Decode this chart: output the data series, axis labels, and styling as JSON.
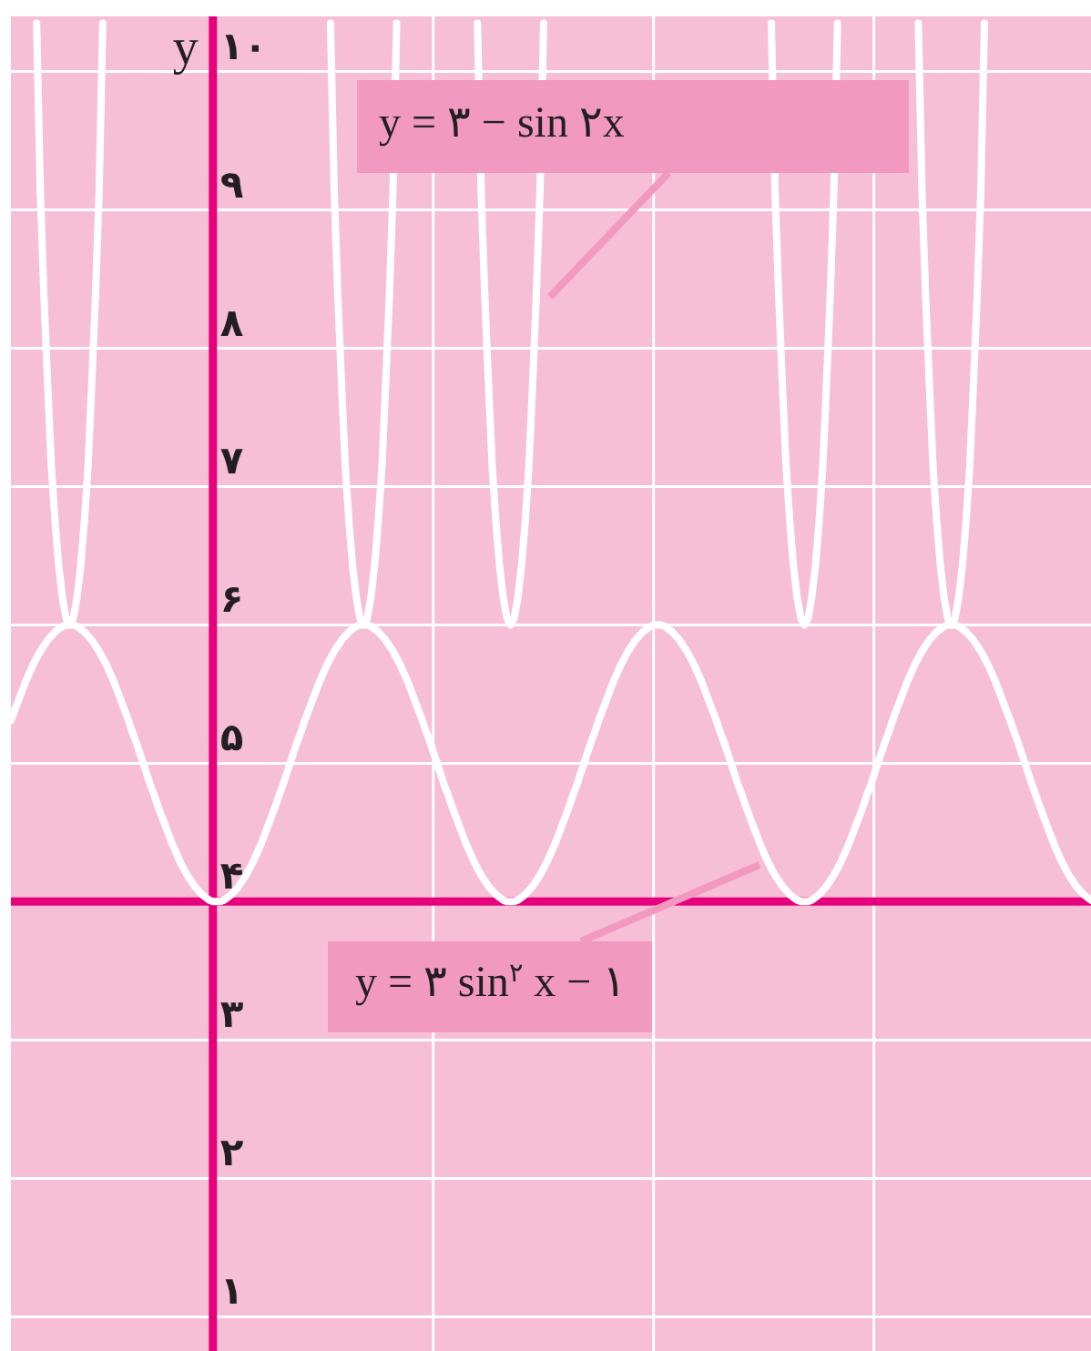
{
  "chart_data": {
    "type": "line",
    "ylabel": "y",
    "categories": [
      null,
      null,
      null,
      null,
      null,
      null,
      null,
      null,
      null,
      null,
      null,
      null,
      null,
      null,
      null,
      null,
      null,
      null,
      null,
      null,
      null,
      null,
      null,
      null,
      null,
      null,
      null,
      null,
      null,
      null,
      null,
      null,
      null,
      null,
      null,
      null,
      null,
      null,
      null,
      null,
      null,
      null,
      null,
      null,
      null,
      null,
      null,
      null,
      null,
      null,
      null,
      null,
      null,
      null,
      null,
      null,
      null,
      null,
      null,
      null,
      null,
      null,
      null,
      null,
      null,
      null,
      null,
      null,
      null,
      null,
      null,
      null,
      null,
      null,
      null,
      null,
      null,
      null,
      null,
      null,
      null,
      null,
      null,
      null,
      null,
      null,
      null,
      null,
      null,
      null,
      null,
      null,
      null,
      null,
      null,
      null,
      null,
      null,
      null,
      null,
      null,
      null,
      null,
      null,
      null,
      null,
      null,
      null,
      null,
      null,
      null,
      null,
      null,
      null,
      null,
      null,
      null,
      null,
      null,
      null,
      null,
      null,
      null,
      null,
      null,
      null,
      null,
      null,
      null,
      null,
      null,
      null,
      null,
      null,
      null,
      null,
      null,
      null,
      null,
      null,
      null,
      null,
      null,
      null,
      null,
      null,
      null,
      null,
      null,
      null,
      null,
      null,
      null,
      null,
      null,
      null,
      null,
      null,
      null,
      null,
      null,
      null,
      null,
      null,
      null,
      null,
      null,
      null,
      null,
      null,
      null,
      null,
      null,
      null,
      null,
      null,
      null,
      null,
      null,
      null,
      null,
      null,
      null,
      null,
      null,
      null,
      null,
      null,
      null,
      null,
      null,
      null,
      null,
      null,
      null,
      null,
      null,
      null,
      null,
      null,
      null,
      null,
      null,
      null,
      null,
      null,
      null,
      null,
      null,
      null,
      null,
      null,
      null,
      null,
      null,
      null,
      null,
      null,
      null,
      null,
      null,
      null,
      null,
      null,
      null,
      null,
      null,
      null,
      null,
      null,
      null,
      null,
      null,
      null,
      null,
      null,
      null,
      null,
      null,
      null,
      null,
      null,
      null,
      null,
      null,
      null,
      null,
      null,
      null,
      null,
      null,
      null,
      null,
      null,
      null,
      null,
      null,
      null,
      null,
      null,
      null,
      null,
      null,
      null,
      null,
      null,
      null,
      null,
      null,
      null,
      null,
      null,
      null,
      null,
      null,
      null,
      null,
      null,
      null,
      null,
      null,
      null,
      null,
      null,
      null,
      null,
      null,
      null,
      null,
      null,
      null,
      null,
      null,
      null,
      null
    ],
    "series": [
      {
        "name": "y = ۳ − sin ۲x",
        "color": "#ffffff",
        "values": [
          null,
          null,
          null,
          null,
          null,
          null,
          null,
          10.35,
          9.13,
          8.37,
          7.74,
          7.15,
          6.75,
          6.43,
          6.2,
          6.05,
          6,
          6.05,
          6.2,
          6.43,
          6.75,
          7.15,
          7.74,
          8.37,
          9.13,
          10.35,
          null,
          null,
          null,
          null,
          null,
          null,
          null,
          null,
          null,
          null,
          null,
          null,
          null,
          null,
          null,
          null,
          null,
          null,
          null,
          null,
          null,
          null,
          null,
          null,
          null,
          null,
          null,
          null,
          null,
          null,
          null,
          null,
          null,
          null,
          null,
          null,
          null,
          null,
          null,
          null,
          null,
          null,
          null,
          null,
          null,
          null,
          null,
          null,
          null,
          null,
          null,
          null,
          null,
          null,
          null,
          null,
          null,
          null,
          null,
          null,
          null,
          10.35,
          9.13,
          8.37,
          7.74,
          7.15,
          6.75,
          6.43,
          6.2,
          6.05,
          6,
          6.05,
          6.2,
          6.43,
          6.75,
          7.15,
          7.74,
          8.37,
          9.13,
          10.35,
          null,
          null,
          null,
          null,
          null,
          null,
          null,
          null,
          null,
          null,
          null,
          null,
          null,
          null,
          null,
          null,
          null,
          null,
          null,
          null,
          null,
          10.35,
          9.13,
          8.37,
          7.74,
          7.15,
          6.75,
          6.43,
          6.2,
          6.05,
          6,
          6.05,
          6.2,
          6.43,
          6.75,
          7.15,
          7.74,
          8.37,
          9.13,
          10.35,
          null,
          null,
          null,
          null,
          null,
          null,
          null,
          null,
          null,
          null,
          null,
          null,
          null,
          null,
          null,
          null,
          null,
          null,
          null,
          null,
          null,
          null,
          null,
          null,
          null,
          null,
          null,
          null,
          null,
          null,
          null,
          null,
          null,
          null,
          null,
          null,
          null,
          null,
          null,
          null,
          null,
          null,
          null,
          null,
          null,
          null,
          null,
          null,
          null,
          null,
          null,
          null,
          null,
          null,
          null,
          null,
          null,
          null,
          null,
          null,
          null,
          10.35,
          9.13,
          8.37,
          7.74,
          7.15,
          6.75,
          6.43,
          6.2,
          6.05,
          6,
          6.05,
          6.2,
          6.43,
          6.75,
          7.15,
          7.74,
          8.37,
          9.13,
          10.35,
          null,
          null,
          null,
          null,
          null,
          null,
          null,
          null,
          null,
          null,
          null,
          null,
          null,
          null,
          null,
          null,
          null,
          null,
          null,
          null,
          null,
          10.35,
          9.13,
          8.37,
          7.74,
          7.15,
          6.75,
          6.43,
          6.2,
          6.05,
          6,
          6.05,
          6.2,
          6.43,
          6.75,
          7.15,
          7.74,
          8.37,
          9.13,
          10.35,
          null,
          null,
          null,
          null,
          null,
          null,
          null,
          null,
          null,
          null,
          null,
          null,
          null,
          null,
          null,
          null,
          null,
          null,
          null,
          null,
          null,
          null,
          null,
          null,
          null,
          null,
          null,
          null,
          null
        ]
      },
      {
        "name": "y = ۳ sin$^{۲}$ x − ۱",
        "color": "#ffffff",
        "values": [
          5.31,
          5.38,
          5.45,
          5.52,
          5.59,
          5.65,
          5.71,
          5.76,
          5.81,
          5.85,
          5.89,
          5.92,
          5.95,
          5.97,
          5.99,
          6,
          6,
          6,
          5.99,
          5.97,
          5.95,
          5.92,
          5.89,
          5.85,
          5.81,
          5.76,
          5.71,
          5.65,
          5.59,
          5.52,
          5.45,
          5.38,
          5.31,
          5.23,
          5.16,
          5.08,
          5,
          4.92,
          4.84,
          4.77,
          4.69,
          4.62,
          4.55,
          4.48,
          4.41,
          4.35,
          4.29,
          4.24,
          4.19,
          4.15,
          4.11,
          4.08,
          4.05,
          4.03,
          4.01,
          4,
          4,
          4,
          4.01,
          4.03,
          4.05,
          4.08,
          4.11,
          4.15,
          4.19,
          4.24,
          4.29,
          4.35,
          4.41,
          4.48,
          4.55,
          4.62,
          4.69,
          4.77,
          4.84,
          4.92,
          5,
          5.08,
          5.16,
          5.23,
          5.31,
          5.38,
          5.45,
          5.52,
          5.59,
          5.65,
          5.71,
          5.76,
          5.81,
          5.85,
          5.89,
          5.92,
          5.95,
          5.97,
          5.99,
          6,
          6,
          6,
          5.99,
          5.97,
          5.95,
          5.92,
          5.89,
          5.85,
          5.81,
          5.76,
          5.71,
          5.65,
          5.59,
          5.52,
          5.45,
          5.38,
          5.31,
          5.23,
          5.16,
          5.08,
          5,
          4.92,
          4.84,
          4.77,
          4.69,
          4.62,
          4.55,
          4.48,
          4.41,
          4.35,
          4.29,
          4.24,
          4.19,
          4.15,
          4.11,
          4.08,
          4.05,
          4.03,
          4.01,
          4,
          4,
          4,
          4.01,
          4.03,
          4.05,
          4.08,
          4.11,
          4.15,
          4.19,
          4.24,
          4.29,
          4.35,
          4.41,
          4.48,
          4.55,
          4.62,
          4.69,
          4.77,
          4.84,
          4.92,
          5,
          5.08,
          5.16,
          5.23,
          5.31,
          5.38,
          5.45,
          5.52,
          5.59,
          5.65,
          5.71,
          5.76,
          5.81,
          5.85,
          5.89,
          5.92,
          5.95,
          5.97,
          5.99,
          6,
          6,
          6,
          5.99,
          5.97,
          5.95,
          5.92,
          5.89,
          5.85,
          5.81,
          5.76,
          5.71,
          5.65,
          5.59,
          5.52,
          5.45,
          5.38,
          5.31,
          5.23,
          5.16,
          5.08,
          5,
          4.92,
          4.84,
          4.77,
          4.69,
          4.62,
          4.55,
          4.48,
          4.41,
          4.35,
          4.29,
          4.24,
          4.19,
          4.15,
          4.11,
          4.08,
          4.05,
          4.03,
          4.01,
          4,
          4,
          4,
          4.01,
          4.03,
          4.05,
          4.08,
          4.11,
          4.15,
          4.19,
          4.24,
          4.29,
          4.35,
          4.41,
          4.48,
          4.55,
          4.62,
          4.69,
          4.77,
          4.84,
          4.92,
          5,
          5.08,
          5.16,
          5.23,
          5.31,
          5.38,
          5.45,
          5.52,
          5.59,
          5.65,
          5.71,
          5.76,
          5.81,
          5.85,
          5.89,
          5.92,
          5.95,
          5.97,
          5.99,
          6,
          6,
          6,
          5.99,
          5.97,
          5.95,
          5.92,
          5.89,
          5.85,
          5.81,
          5.76,
          5.71,
          5.65,
          5.59,
          5.52,
          5.45,
          5.38,
          5.31,
          5.23,
          5.16,
          5.08,
          5,
          4.92,
          4.84,
          4.77,
          4.69,
          4.62,
          4.55,
          4.48,
          4.41,
          4.35,
          4.29,
          4.24,
          4.19,
          4.15,
          4.11,
          4.08,
          4.05,
          4.03,
          4.01
        ]
      }
    ],
    "ylim": [
      0.75,
      10.4
    ],
    "yticks": [
      {
        "value": 1,
        "label": "۱"
      },
      {
        "value": 2,
        "label": "۲"
      },
      {
        "value": 3,
        "label": "۳"
      },
      {
        "value": 4,
        "label": "۴"
      },
      {
        "value": 5,
        "label": "۵"
      },
      {
        "value": 6,
        "label": "۶"
      },
      {
        "value": 7,
        "label": "۷"
      },
      {
        "value": 8,
        "label": "۸"
      },
      {
        "value": 9,
        "label": "۹"
      },
      {
        "value": 10,
        "label": "۱۰"
      }
    ],
    "ref_lines": [
      {
        "axis": "y",
        "value": 4,
        "color": "#e6007e"
      }
    ],
    "grid": true,
    "tick_labels": "y"
  }
}
